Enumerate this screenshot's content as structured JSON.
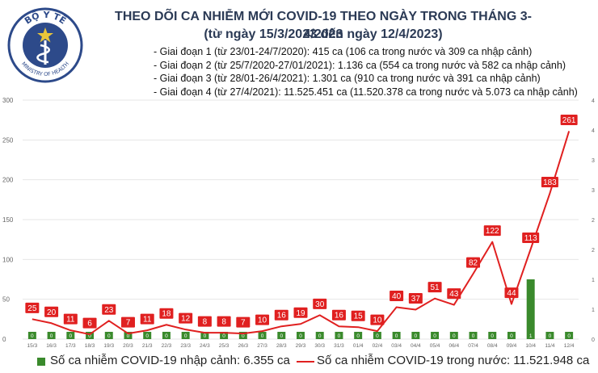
{
  "logo": {
    "text_top": "BỘ Y TẾ",
    "text_bottom": "MINISTRY OF HEALTH"
  },
  "title": "THEO DÕI CA NHIỄM MỚI COVID-19 THEO NGÀY TRONG THÁNG 3-4/2023",
  "subtitle": "(từ ngày 15/3/2023 đến ngày 12/4/2023)",
  "phases": [
    "- Giai đoạn 1 (từ 23/01-24/7/2020): 415 ca (106 ca trong nước và 309 ca nhập cảnh)",
    "- Giai đoạn 2 (từ 25/7/2020-27/01/2021): 1.136 ca (554 ca trong nước và 582 ca nhập cảnh)",
    "- Giai đoạn 3 (từ 28/01-26/4/2021): 1.301 ca (910 ca trong nước và 391 ca nhập cảnh)",
    "- Giai đoạn 4 (từ 27/4/2021): 11.525.451 ca (11.520.378 ca trong nước và 5.073 ca nhập cảnh)"
  ],
  "legend": {
    "bar_label": "Số ca nhiễm COVID-19 nhập cảnh: 6.355 ca",
    "line_label": "Số ca nhiễm COVID-19 trong nước: 11.521.948 ca"
  },
  "colors": {
    "bar": "#3a8a2c",
    "line": "#e02020",
    "grid": "#e6e6e6",
    "axis_text": "#666666",
    "logo": "#2d4a8a"
  },
  "chart_data": {
    "type": "bar+line",
    "categories": [
      "15/3",
      "16/3",
      "17/3",
      "18/3",
      "19/3",
      "20/3",
      "21/3",
      "22/3",
      "23/3",
      "24/3",
      "25/3",
      "26/3",
      "27/3",
      "28/3",
      "29/3",
      "30/3",
      "31/3",
      "01/4",
      "02/4",
      "03/4",
      "04/4",
      "05/4",
      "06/4",
      "07/4",
      "08/4",
      "09/4",
      "10/4",
      "11/4",
      "12/4"
    ],
    "series": [
      {
        "kind": "bar",
        "axis": "right",
        "values": [
          0,
          0,
          0,
          0,
          0,
          0,
          0,
          0,
          0,
          0,
          0,
          0,
          0,
          0,
          0,
          0,
          0,
          0,
          0,
          0,
          0,
          0,
          0,
          0,
          0,
          0,
          1,
          0,
          0
        ]
      },
      {
        "kind": "line",
        "axis": "left",
        "values": [
          25,
          20,
          11,
          6,
          23,
          7,
          11,
          18,
          12,
          8,
          8,
          7,
          10,
          16,
          19,
          30,
          16,
          15,
          10,
          40,
          37,
          51,
          43,
          82,
          122,
          44,
          113,
          183,
          261
        ]
      }
    ],
    "y_left": {
      "min": 0,
      "max": 300,
      "ticks": [
        0,
        50,
        100,
        150,
        200,
        250,
        300
      ]
    },
    "y_right": {
      "min": 0,
      "max": 4,
      "tick_labels": [
        "0",
        "1",
        "1",
        "2",
        "2",
        "3",
        "3",
        "4",
        "4"
      ]
    },
    "grid": true,
    "legend_position": "bottom"
  }
}
